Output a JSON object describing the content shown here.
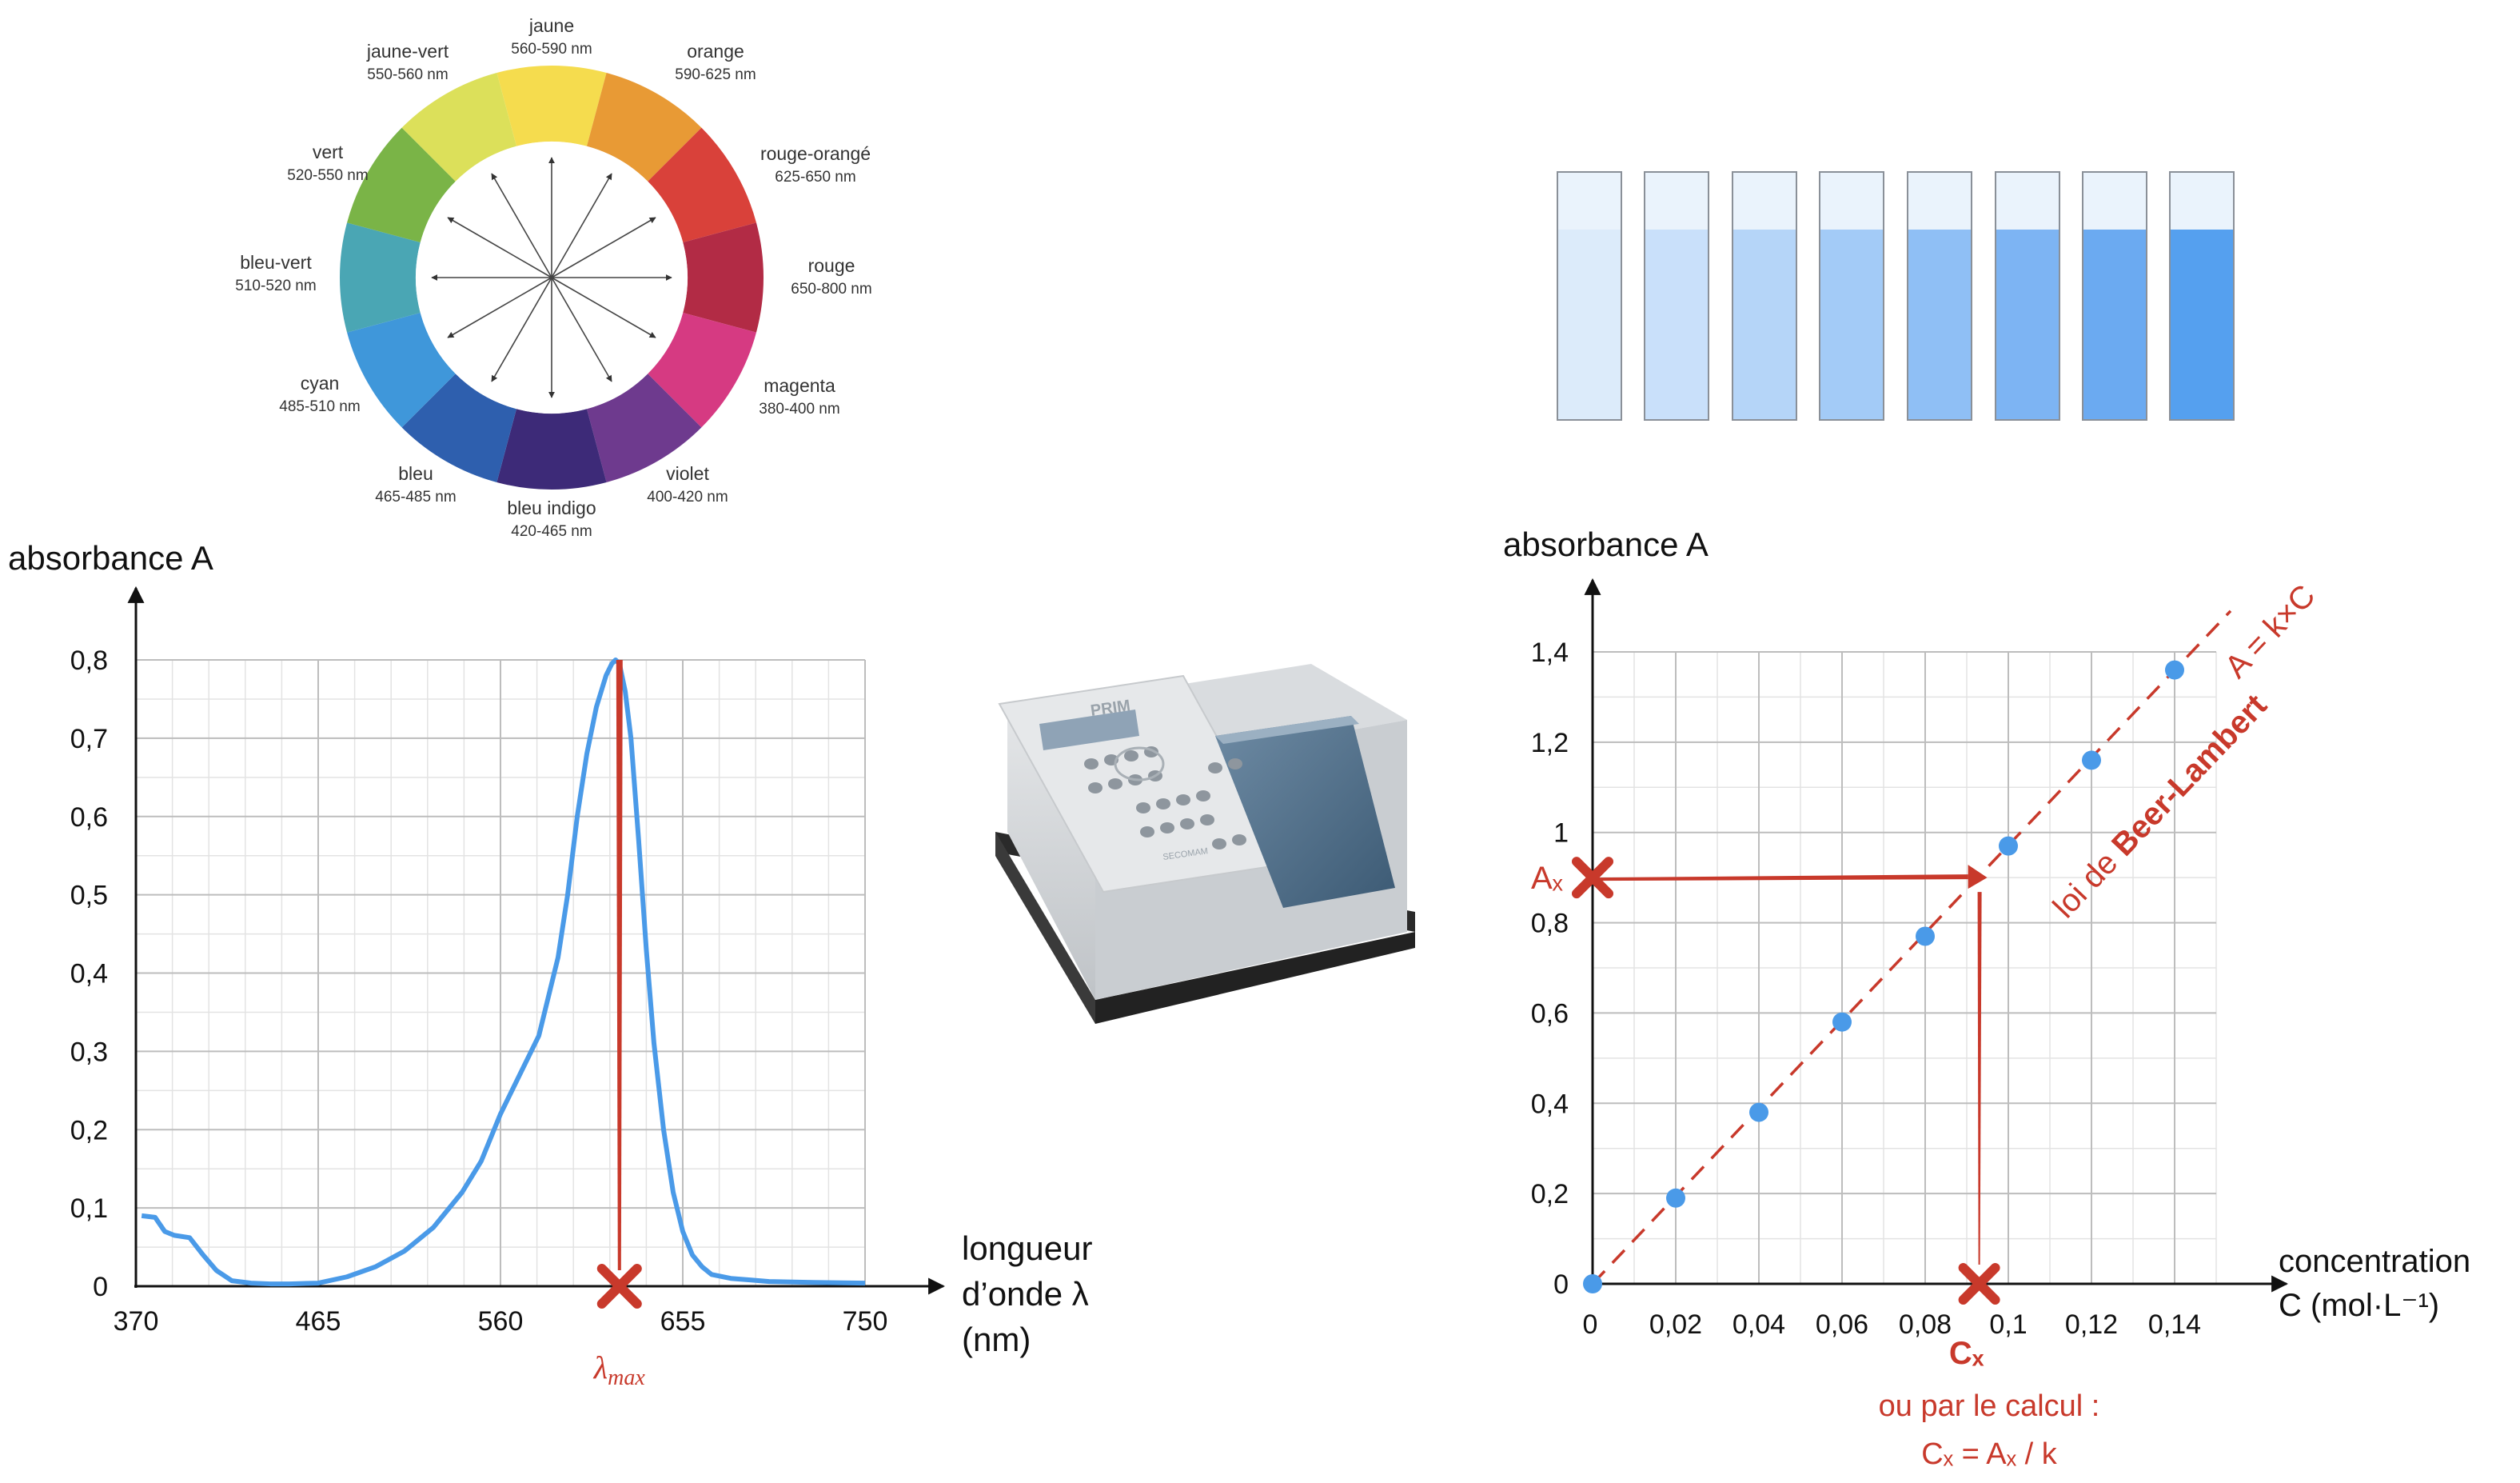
{
  "color_wheel": {
    "segments": [
      {
        "name": "jaune",
        "range": "560-590 nm",
        "color": "#F5DC4E"
      },
      {
        "name": "orange",
        "range": "590-625 nm",
        "color": "#E89A35"
      },
      {
        "name": "rouge-orangé",
        "range": "625-650 nm",
        "color": "#D9413A"
      },
      {
        "name": "rouge",
        "range": "650-800 nm",
        "color": "#B22B45"
      },
      {
        "name": "magenta",
        "range": "380-400 nm",
        "color": "#D63A82"
      },
      {
        "name": "violet",
        "range": "400-420 nm",
        "color": "#6E3A8E"
      },
      {
        "name": "bleu indigo",
        "range": "420-465 nm",
        "color": "#3D2A78"
      },
      {
        "name": "bleu",
        "range": "465-485 nm",
        "color": "#2E5FAE"
      },
      {
        "name": "cyan",
        "range": "485-510 nm",
        "color": "#3F97DA"
      },
      {
        "name": "bleu-vert",
        "range": "510-520 nm",
        "color": "#4AA6B4"
      },
      {
        "name": "vert",
        "range": "520-550 nm",
        "color": "#7AB447"
      },
      {
        "name": "jaune-vert",
        "range": "550-560 nm",
        "color": "#DCE05A"
      }
    ]
  },
  "tubes": {
    "count": 8,
    "colors": [
      "#DCEBFA",
      "#C9E0FA",
      "#B5D5F8",
      "#A3CBF7",
      "#8FBFF5",
      "#7DB4F3",
      "#6BAAF1",
      "#55A0EF"
    ]
  },
  "spectrophotometer": {
    "brand": "PRIM",
    "maker": "SECOMAM"
  },
  "chart_data": [
    {
      "type": "line",
      "ylabel": "absorbance A",
      "xlabel": [
        "longueur",
        "d’onde λ",
        "(nm)"
      ],
      "x_ticks": [
        "370",
        "465",
        "560",
        "655",
        "750"
      ],
      "y_ticks": [
        "0",
        "0,1",
        "0,2",
        "0,3",
        "0,4",
        "0,5",
        "0,6",
        "0,7",
        "0,8"
      ],
      "xlim": [
        370,
        750
      ],
      "ylim": [
        0,
        0.8
      ],
      "grid": true,
      "series": [
        {
          "color": "#4A9AE8",
          "x": [
            373,
            380,
            385,
            390,
            398,
            405,
            412,
            420,
            430,
            440,
            450,
            465,
            480,
            495,
            510,
            525,
            540,
            550,
            560,
            570,
            580,
            590,
            595,
            600,
            605,
            610,
            615,
            618,
            620,
            622,
            625,
            628,
            632,
            636,
            640,
            645,
            650,
            655,
            660,
            665,
            670,
            680,
            690,
            700,
            720,
            750
          ],
          "y": [
            0.09,
            0.088,
            0.07,
            0.065,
            0.062,
            0.04,
            0.02,
            0.007,
            0.004,
            0.003,
            0.003,
            0.004,
            0.012,
            0.025,
            0.045,
            0.075,
            0.12,
            0.16,
            0.22,
            0.27,
            0.32,
            0.42,
            0.5,
            0.6,
            0.68,
            0.74,
            0.78,
            0.795,
            0.8,
            0.795,
            0.76,
            0.7,
            0.57,
            0.43,
            0.31,
            0.2,
            0.12,
            0.07,
            0.04,
            0.025,
            0.015,
            0.01,
            0.008,
            0.006,
            0.005,
            0.004
          ]
        }
      ],
      "annotations": {
        "marker_x": 622,
        "marker_label": "λmax",
        "color": "#C8392B"
      }
    },
    {
      "type": "scatter",
      "ylabel": "absorbance A",
      "xlabel": [
        "concentration",
        "C (mol·L⁻¹)"
      ],
      "x_ticks": [
        "0",
        "0,02",
        "0,04",
        "0,06",
        "0,08",
        "0,1",
        "0,12",
        "0,14"
      ],
      "y_ticks": [
        "0",
        "0,2",
        "0,4",
        "0,6",
        "0,8",
        "1",
        "1,2",
        "1,4"
      ],
      "xlim": [
        0,
        0.15
      ],
      "ylim": [
        0,
        1.4
      ],
      "grid": true,
      "points": {
        "color": "#4A9AE8",
        "x": [
          0,
          0.02,
          0.04,
          0.06,
          0.08,
          0.1,
          0.12,
          0.14
        ],
        "y": [
          0,
          0.19,
          0.38,
          0.58,
          0.77,
          0.97,
          1.16,
          1.36
        ]
      },
      "fit_label": "A = k×C",
      "law_label_prefix": "loi de ",
      "law_label_bold": "Beer-Lambert",
      "ax_label": "Aₓ",
      "ax_value": 0.9,
      "cx_label": "Cₓ",
      "cx_value": 0.093,
      "note_line1": "ou par le calcul :",
      "note_line2": "Cₓ = Aₓ / k",
      "accent": "#C8392B"
    }
  ]
}
